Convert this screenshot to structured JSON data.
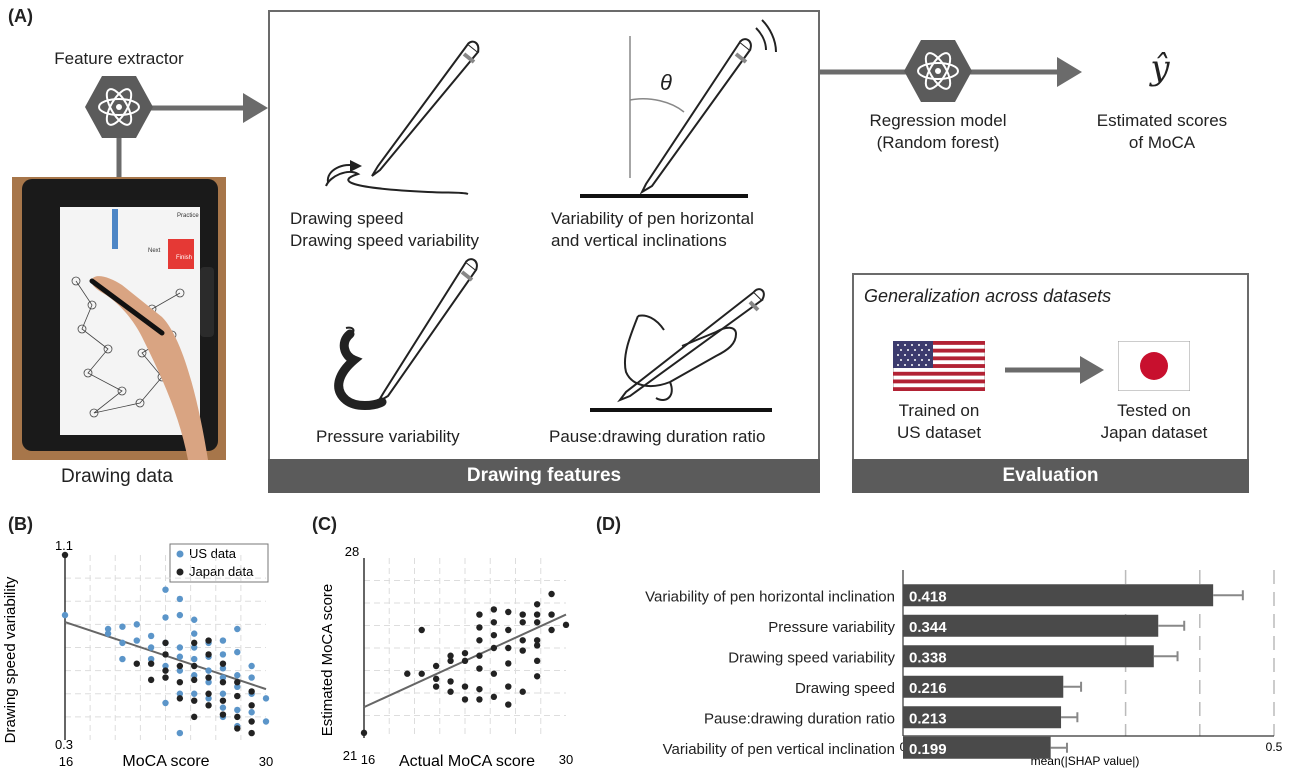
{
  "panels": {
    "a": "(A)",
    "b": "(B)",
    "c": "(C)",
    "d": "(D)"
  },
  "feature_extractor": {
    "title": "Feature extractor",
    "caption": "Drawing data",
    "tablet_words": [
      "Practice",
      "Finish",
      "Next"
    ]
  },
  "features": {
    "speed_line1": "Drawing speed",
    "speed_line2": "Drawing speed variability",
    "incl_line1": "Variability of pen horizontal",
    "incl_line2": "and vertical inclinations",
    "theta": "θ",
    "pressure": "Pressure variability",
    "pause": "Pause:drawing duration ratio",
    "footer": "Drawing features"
  },
  "regression": {
    "line1": "Regression model",
    "line2": "(Random forest)",
    "y_hat": "ŷ",
    "est_line1": "Estimated scores",
    "est_line2": "of MoCA"
  },
  "evaluation": {
    "heading": "Generalization across datasets",
    "trained_line1": "Trained on",
    "trained_line2": "US dataset",
    "tested_line1": "Tested on",
    "tested_line2": "Japan dataset",
    "footer": "Evaluation"
  },
  "colors": {
    "us": "#5b95c9",
    "japan": "#222222",
    "bar": "#4a4a4a",
    "box_border": "#6b6b6b",
    "footer_bg": "#5b5b5b",
    "japan_sun": "#c8102e",
    "flag_red": "#b22234",
    "flag_blue": "#3c3b6e"
  },
  "chart_data": [
    {
      "type": "scatter",
      "title": "",
      "xlabel": "MoCA score",
      "ylabel": "Drawing speed variability",
      "xlim": [
        16,
        30
      ],
      "ylim": [
        0.3,
        1.1
      ],
      "x_ticks": [
        "16",
        "30"
      ],
      "y_ticks": [
        "1.1",
        "0.3"
      ],
      "legend": [
        "US data",
        "Japan data"
      ],
      "legend_position": "top-right",
      "grid": true,
      "series": [
        {
          "name": "US data",
          "points": [
            [
              16,
              0.84
            ],
            [
              19,
              0.78
            ],
            [
              19,
              0.76
            ],
            [
              20,
              0.79
            ],
            [
              20,
              0.72
            ],
            [
              20,
              0.65
            ],
            [
              21,
              0.8
            ],
            [
              21,
              0.73
            ],
            [
              22,
              0.75
            ],
            [
              22,
              0.7
            ],
            [
              22,
              0.65
            ],
            [
              23,
              0.95
            ],
            [
              23,
              0.83
            ],
            [
              23,
              0.72
            ],
            [
              23,
              0.62
            ],
            [
              23,
              0.46
            ],
            [
              24,
              0.91
            ],
            [
              24,
              0.84
            ],
            [
              24,
              0.7
            ],
            [
              24,
              0.66
            ],
            [
              24,
              0.6
            ],
            [
              24,
              0.5
            ],
            [
              24,
              0.33
            ],
            [
              25,
              0.82
            ],
            [
              25,
              0.76
            ],
            [
              25,
              0.7
            ],
            [
              25,
              0.65
            ],
            [
              25,
              0.58
            ],
            [
              25,
              0.5
            ],
            [
              26,
              0.72
            ],
            [
              26,
              0.66
            ],
            [
              26,
              0.6
            ],
            [
              26,
              0.55
            ],
            [
              26,
              0.48
            ],
            [
              27,
              0.73
            ],
            [
              27,
              0.67
            ],
            [
              27,
              0.61
            ],
            [
              27,
              0.57
            ],
            [
              27,
              0.5
            ],
            [
              27,
              0.44
            ],
            [
              27,
              0.4
            ],
            [
              28,
              0.78
            ],
            [
              28,
              0.68
            ],
            [
              28,
              0.58
            ],
            [
              28,
              0.53
            ],
            [
              28,
              0.43
            ],
            [
              28,
              0.36
            ],
            [
              29,
              0.62
            ],
            [
              29,
              0.57
            ],
            [
              29,
              0.5
            ],
            [
              29,
              0.42
            ],
            [
              30,
              0.48
            ],
            [
              30,
              0.38
            ]
          ]
        },
        {
          "name": "Japan data",
          "points": [
            [
              16,
              1.1
            ],
            [
              21,
              0.63
            ],
            [
              22,
              0.63
            ],
            [
              22,
              0.56
            ],
            [
              23,
              0.72
            ],
            [
              23,
              0.67
            ],
            [
              23,
              0.6
            ],
            [
              23,
              0.57
            ],
            [
              24,
              0.62
            ],
            [
              24,
              0.55
            ],
            [
              24,
              0.48
            ],
            [
              25,
              0.72
            ],
            [
              25,
              0.62
            ],
            [
              25,
              0.56
            ],
            [
              25,
              0.47
            ],
            [
              25,
              0.4
            ],
            [
              26,
              0.73
            ],
            [
              26,
              0.67
            ],
            [
              26,
              0.57
            ],
            [
              26,
              0.5
            ],
            [
              26,
              0.45
            ],
            [
              27,
              0.63
            ],
            [
              27,
              0.55
            ],
            [
              27,
              0.47
            ],
            [
              27,
              0.41
            ],
            [
              28,
              0.55
            ],
            [
              28,
              0.49
            ],
            [
              28,
              0.4
            ],
            [
              28,
              0.35
            ],
            [
              29,
              0.51
            ],
            [
              29,
              0.45
            ],
            [
              29,
              0.38
            ],
            [
              29,
              0.33
            ]
          ]
        }
      ],
      "trend_line": {
        "x": [
          16,
          30
        ],
        "y": [
          0.81,
          0.52
        ]
      }
    },
    {
      "type": "scatter",
      "title": "",
      "xlabel": "Actual MoCA score",
      "ylabel": "Estimated MoCA score",
      "xlim": [
        16,
        30
      ],
      "ylim": [
        21,
        28
      ],
      "x_ticks": [
        "16",
        "30"
      ],
      "y_ticks": [
        "28",
        "21"
      ],
      "grid": true,
      "series": [
        {
          "name": "",
          "points": [
            [
              16,
              21.2
            ],
            [
              19,
              23.5
            ],
            [
              20,
              23.5
            ],
            [
              20,
              25.2
            ],
            [
              21,
              23.0
            ],
            [
              21,
              23.8
            ],
            [
              21,
              23.3
            ],
            [
              22,
              24.2
            ],
            [
              22,
              23.2
            ],
            [
              22,
              22.8
            ],
            [
              22,
              24.0
            ],
            [
              23,
              24.3
            ],
            [
              23,
              24.0
            ],
            [
              23,
              23.0
            ],
            [
              23,
              22.5
            ],
            [
              24,
              24.8
            ],
            [
              24,
              25.3
            ],
            [
              24,
              25.8
            ],
            [
              24,
              24.2
            ],
            [
              24,
              23.7
            ],
            [
              24,
              22.5
            ],
            [
              24,
              22.9
            ],
            [
              25,
              26.0
            ],
            [
              25,
              25.5
            ],
            [
              25,
              25.0
            ],
            [
              25,
              24.5
            ],
            [
              25,
              23.5
            ],
            [
              25,
              22.6
            ],
            [
              26,
              25.9
            ],
            [
              26,
              25.2
            ],
            [
              26,
              24.5
            ],
            [
              26,
              23.9
            ],
            [
              26,
              23.0
            ],
            [
              26,
              22.3
            ],
            [
              27,
              25.8
            ],
            [
              27,
              25.5
            ],
            [
              27,
              24.8
            ],
            [
              27,
              24.4
            ],
            [
              27,
              22.8
            ],
            [
              28,
              26.2
            ],
            [
              28,
              25.8
            ],
            [
              28,
              25.5
            ],
            [
              28,
              24.8
            ],
            [
              28,
              24.6
            ],
            [
              28,
              24.0
            ],
            [
              28,
              23.4
            ],
            [
              29,
              26.6
            ],
            [
              29,
              25.8
            ],
            [
              29,
              25.2
            ],
            [
              30,
              25.4
            ]
          ]
        }
      ],
      "trend_line": {
        "x": [
          16,
          30
        ],
        "y": [
          22.2,
          25.8
        ]
      }
    },
    {
      "type": "bar",
      "orientation": "horizontal",
      "title": "",
      "xlabel": "mean(|SHAP value|)",
      "ylabel": "",
      "xlim": [
        0,
        0.5
      ],
      "x_ticks": [
        "0",
        "0.5"
      ],
      "categories": [
        "Variability of pen horizontal inclination",
        "Pressure variability",
        "Drawing speed variability",
        "Drawing speed",
        "Pause:drawing duration ratio",
        "Variability of pen vertical inclination"
      ],
      "values": [
        0.418,
        0.344,
        0.338,
        0.216,
        0.213,
        0.199
      ],
      "value_labels": [
        "0.418",
        "0.344",
        "0.338",
        "0.216",
        "0.213",
        "0.199"
      ],
      "errors": [
        0.04,
        0.035,
        0.032,
        0.024,
        0.022,
        0.022
      ],
      "reference_lines": [
        0.3,
        0.4,
        0.5
      ]
    }
  ]
}
